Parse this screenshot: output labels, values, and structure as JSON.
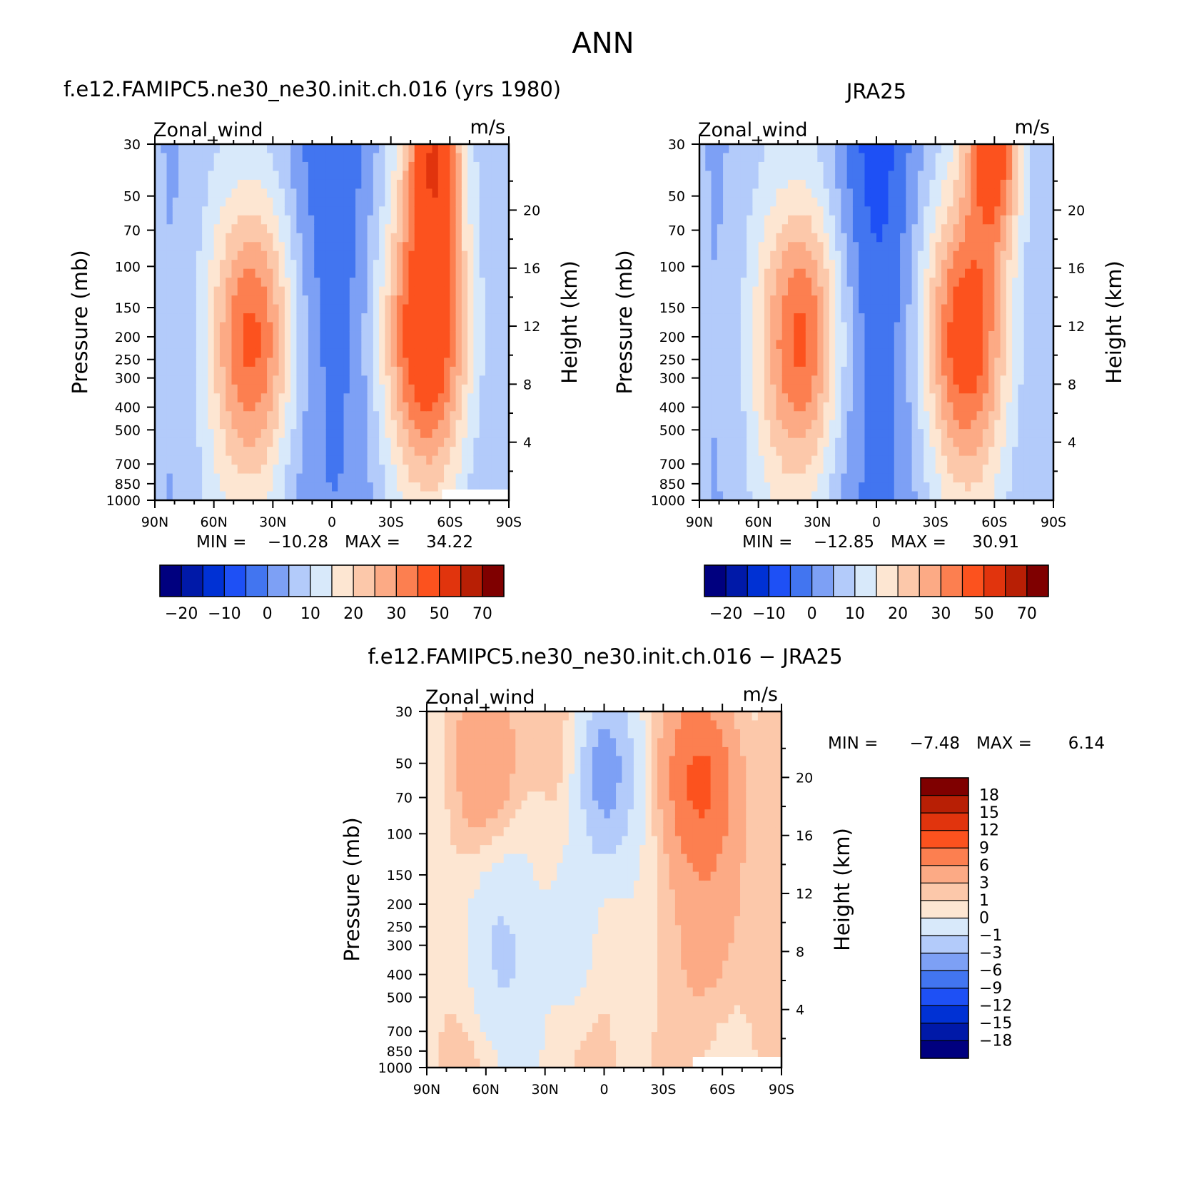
{
  "figure": {
    "title": "ANN"
  },
  "chart_data": [
    {
      "type": "heatmap",
      "title": "f.e12.FAMIPC5.ne30_ne30.init.ch.016 (yrs 1980)",
      "variable": "Zonal_wind",
      "units": "m/s",
      "ylabel": "Pressure (mb)",
      "y2label": "Height (km)",
      "x_ticks": [
        "90N",
        "60N",
        "30N",
        "0",
        "30S",
        "60S",
        "90S"
      ],
      "y_ticks": [
        "30",
        "50",
        "70",
        "100",
        "150",
        "200",
        "250",
        "300",
        "400",
        "500",
        "700",
        "850",
        "1000"
      ],
      "y2_ticks": [
        "20",
        "16",
        "12",
        "8",
        "4"
      ],
      "xlim": [
        90,
        -90
      ],
      "ylim": [
        1000,
        30
      ],
      "y_scale": "log",
      "min_label": "MIN =",
      "min_value": "−10.28",
      "max_label": "MAX =",
      "max_value": "34.22",
      "colorbar_labels": [
        "−20",
        "−10",
        "0",
        "10",
        "20",
        "30",
        "50",
        "70"
      ],
      "jets": [
        {
          "lat": 40,
          "p": 200,
          "peak": 27
        },
        {
          "lat": -48,
          "p": 190,
          "peak": 34
        },
        {
          "lat": -52,
          "p": 30,
          "peak": 32
        }
      ],
      "easterly_min": -10.3
    },
    {
      "type": "heatmap",
      "title": "JRA25",
      "variable": "Zonal_wind",
      "units": "m/s",
      "ylabel": "Pressure (mb)",
      "y2label": "Height (km)",
      "x_ticks": [
        "90N",
        "60N",
        "30N",
        "0",
        "30S",
        "60S",
        "90S"
      ],
      "y_ticks": [
        "30",
        "50",
        "70",
        "100",
        "150",
        "200",
        "250",
        "300",
        "400",
        "500",
        "700",
        "850",
        "1000"
      ],
      "y2_ticks": [
        "20",
        "16",
        "12",
        "8",
        "4"
      ],
      "xlim": [
        90,
        -90
      ],
      "ylim": [
        1000,
        30
      ],
      "y_scale": "log",
      "min_label": "MIN =",
      "min_value": "−12.85",
      "max_label": "MAX =",
      "max_value": "30.91",
      "colorbar_labels": [
        "−20",
        "−10",
        "0",
        "10",
        "20",
        "30",
        "50",
        "70"
      ],
      "jets": [
        {
          "lat": 38,
          "p": 200,
          "peak": 27
        },
        {
          "lat": -45,
          "p": 200,
          "peak": 30
        },
        {
          "lat": -60,
          "p": 30,
          "peak": 31
        }
      ],
      "easterly_min": -12.9
    },
    {
      "type": "heatmap",
      "title": "f.e12.FAMIPC5.ne30_ne30.init.ch.016 − JRA25",
      "variable": "Zonal_wind",
      "units": "m/s",
      "ylabel": "Pressure (mb)",
      "y2label": "Height (km)",
      "x_ticks": [
        "90N",
        "60N",
        "30N",
        "0",
        "30S",
        "60S",
        "90S"
      ],
      "y_ticks": [
        "30",
        "50",
        "70",
        "100",
        "150",
        "200",
        "250",
        "300",
        "400",
        "500",
        "700",
        "850",
        "1000"
      ],
      "y2_ticks": [
        "20",
        "16",
        "12",
        "8",
        "4"
      ],
      "xlim": [
        90,
        -90
      ],
      "ylim": [
        1000,
        30
      ],
      "y_scale": "log",
      "min_label": "MIN =",
      "min_value": "−7.48",
      "max_label": "MAX =",
      "max_value": "6.14",
      "colorbar_labels": [
        "18",
        "15",
        "12",
        "9",
        "6",
        "3",
        "1",
        "0",
        "−1",
        "−3",
        "−6",
        "−9",
        "−12",
        "−15",
        "−18"
      ],
      "features": [
        {
          "lat": 0,
          "p": 55,
          "value": -7.5
        },
        {
          "lat": -50,
          "p": 60,
          "value": 6.1
        },
        {
          "lat": 60,
          "p": 50,
          "value": 2.5
        },
        {
          "lat": 55,
          "p": 320,
          "value": -3.0
        },
        {
          "lat": 15,
          "p": 250,
          "value": -3.2
        },
        {
          "lat": -55,
          "p": 250,
          "value": 2.0
        }
      ]
    }
  ],
  "colors": {
    "full_field": [
      "#00007f",
      "#0019a8",
      "#0031d4",
      "#1e50f5",
      "#4275f0",
      "#7da0f5",
      "#b3cbfa",
      "#d8e9fa",
      "#fde6d2",
      "#fcc8aa",
      "#fcaa85",
      "#fc7f50",
      "#fc521e",
      "#e1340d",
      "#b81f05",
      "#7f0000"
    ],
    "difference": [
      "#00007f",
      "#0019a8",
      "#0031d4",
      "#1e50f5",
      "#4275f0",
      "#7da0f5",
      "#b3cbfa",
      "#d8e9fa",
      "#fde6d2",
      "#fcc8aa",
      "#fcaa85",
      "#fc7f50",
      "#fc521e",
      "#e1340d",
      "#b81f05",
      "#7f0000"
    ]
  }
}
